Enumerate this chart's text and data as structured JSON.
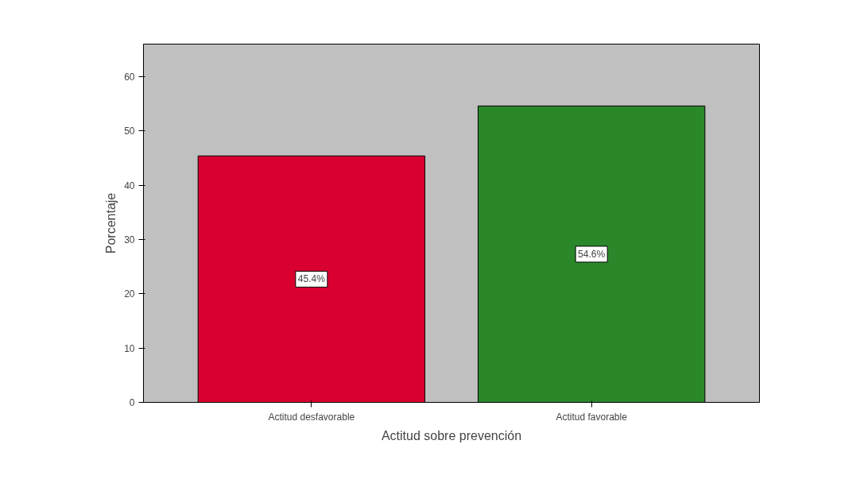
{
  "chart_data": {
    "type": "bar",
    "xlabel": "Actitud sobre prevención",
    "ylabel": "Porcentaje",
    "categories": [
      "Actitud desfavorable",
      "Actitud favorable"
    ],
    "values": [
      45.4,
      54.6
    ],
    "value_labels": [
      "45.4%",
      "54.6%"
    ],
    "colors": [
      "#d90030",
      "#2a882b"
    ],
    "ylim": [
      0,
      66
    ],
    "yticks": [
      0,
      10,
      20,
      30,
      40,
      50,
      60
    ],
    "grid": false
  }
}
